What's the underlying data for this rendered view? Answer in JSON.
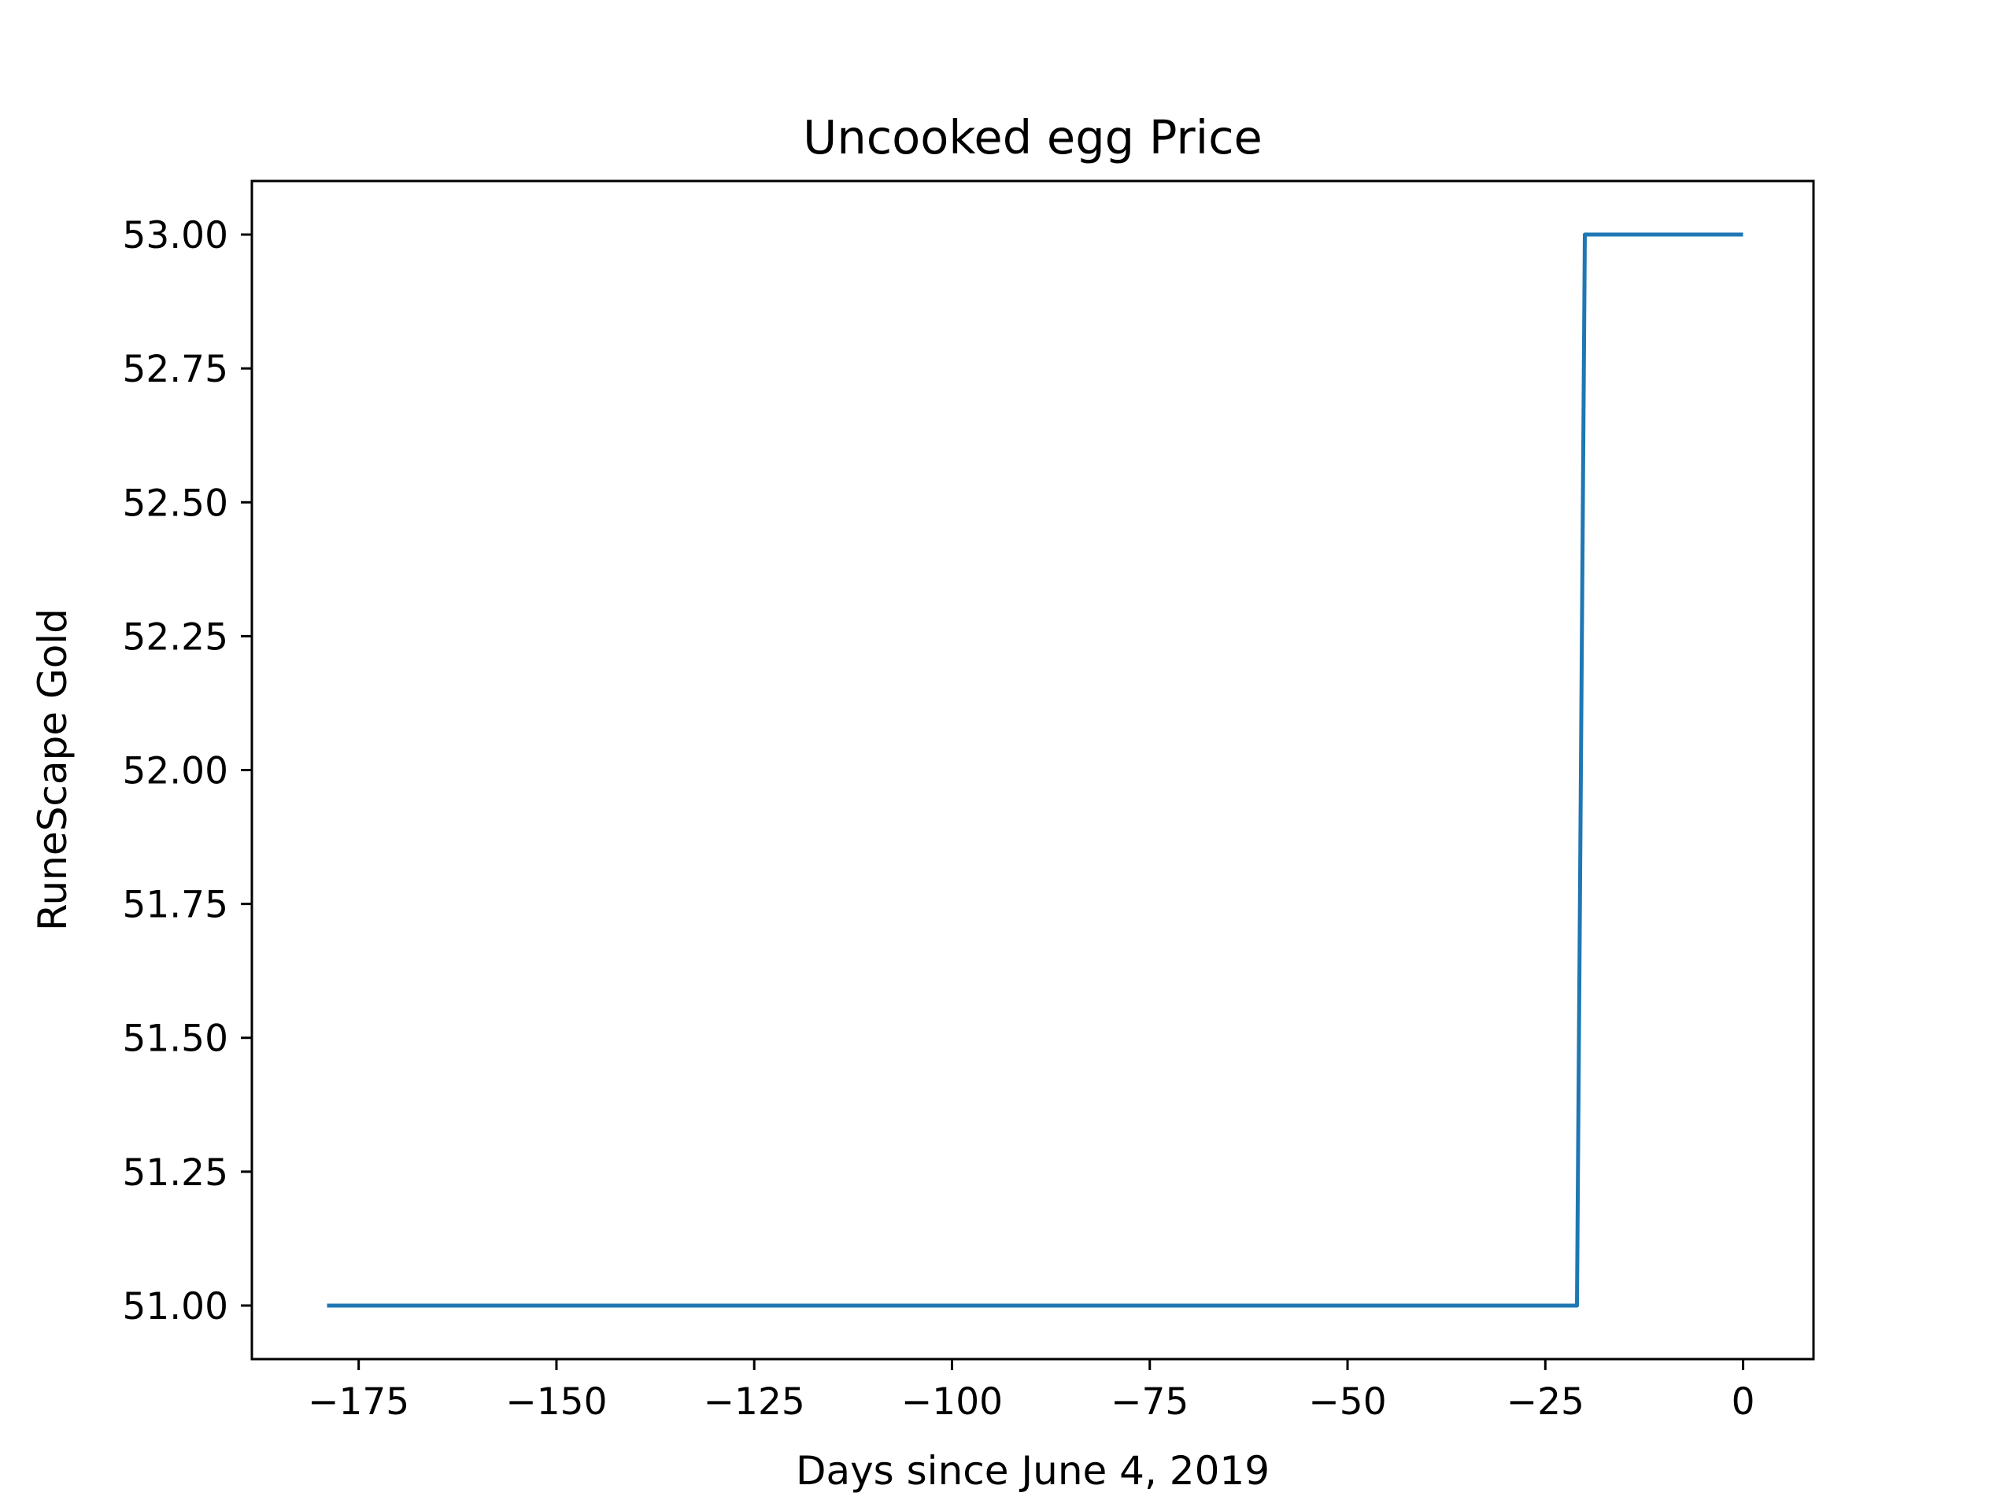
{
  "chart_data": {
    "type": "line",
    "title": "Uncooked egg Price",
    "xlabel": "Days since June 4, 2019",
    "ylabel": "RuneScape Gold",
    "xlim": [
      -188.5,
      8.9
    ],
    "ylim": [
      50.9,
      53.1
    ],
    "x_ticks": [
      -175,
      -150,
      -125,
      -100,
      -75,
      -50,
      -25,
      0
    ],
    "x_tick_labels": [
      "−175",
      "−150",
      "−125",
      "−100",
      "−75",
      "−50",
      "−25",
      "0"
    ],
    "y_ticks": [
      51.0,
      51.25,
      51.5,
      51.75,
      52.0,
      52.25,
      52.5,
      52.75,
      53.0
    ],
    "y_tick_labels": [
      "51.00",
      "51.25",
      "51.50",
      "51.75",
      "52.00",
      "52.25",
      "52.50",
      "52.75",
      "53.00"
    ],
    "grid": false,
    "series": [
      {
        "color": "#1f77b4",
        "x": [
          -179,
          -21,
          -20,
          0
        ],
        "y": [
          51.0,
          51.0,
          53.0,
          53.0
        ]
      }
    ]
  }
}
